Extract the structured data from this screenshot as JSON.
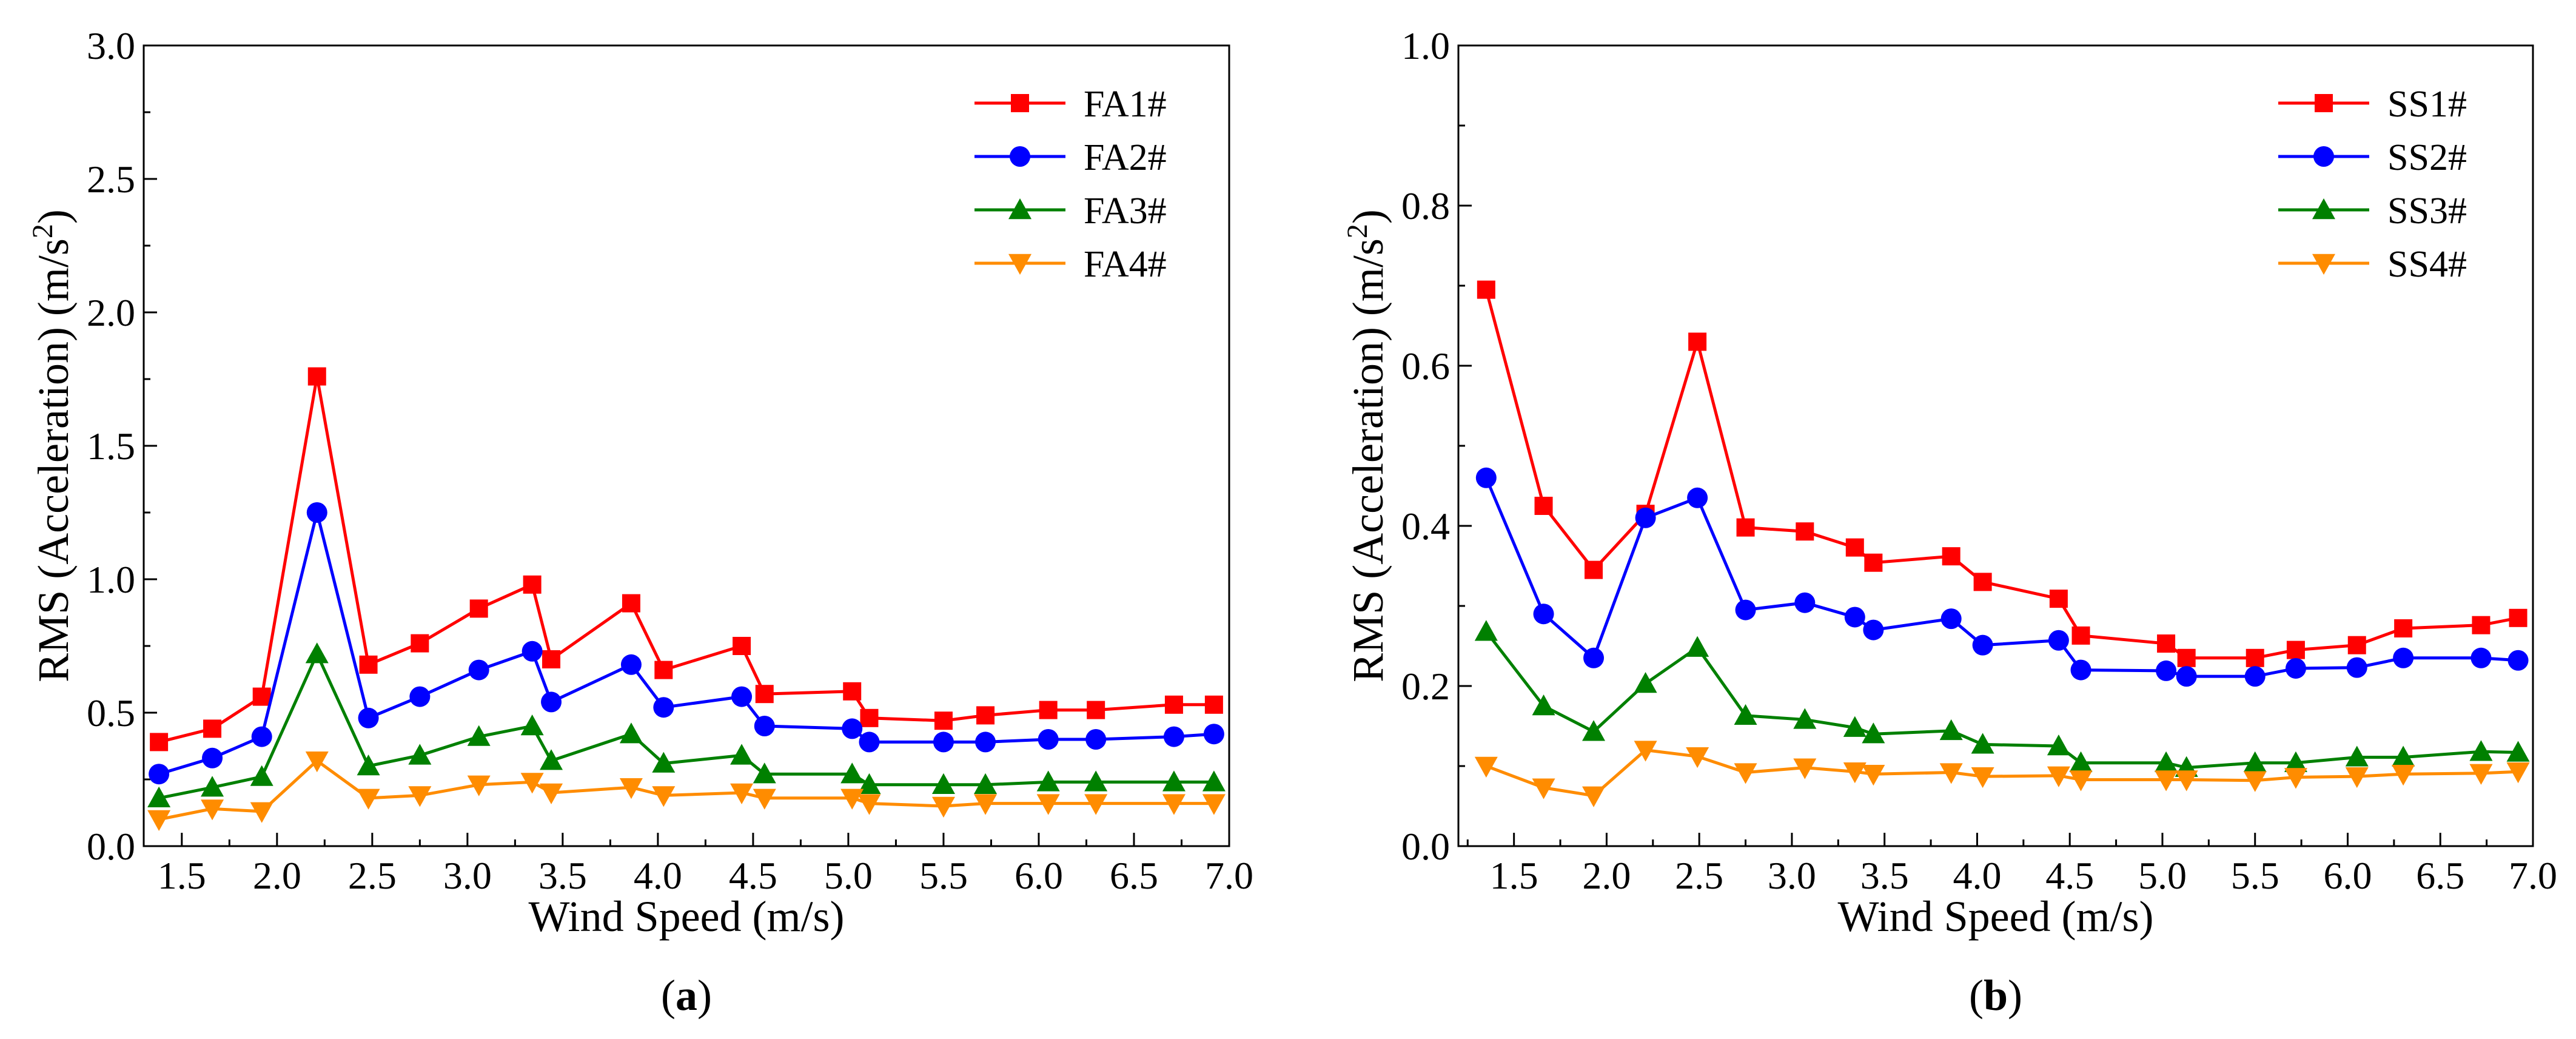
{
  "chart_data": [
    {
      "type": "line",
      "panel_label": "(a)",
      "xlabel": "Wind Speed (m/s)",
      "ylabel": "RMS (Acceleration) (m/s²)",
      "ylabel_main": "RMS (Acceleration) (m/s",
      "ylabel_sup": "2",
      "ylabel_tail": ")",
      "xlim": [
        1.3,
        7.0
      ],
      "ylim": [
        0.0,
        3.0
      ],
      "xticks": [
        "1.5",
        "2.0",
        "2.5",
        "3.0",
        "3.5",
        "4.0",
        "4.5",
        "5.0",
        "5.5",
        "6.0",
        "6.5",
        "7.0"
      ],
      "yticks": [
        "0.0",
        "0.5",
        "1.0",
        "1.5",
        "2.0",
        "2.5",
        "3.0"
      ],
      "legend_position": "top-right",
      "grid": false,
      "x": [
        1.38,
        1.66,
        1.92,
        2.21,
        2.48,
        2.75,
        3.06,
        3.34,
        3.44,
        3.86,
        4.03,
        4.44,
        4.56,
        5.02,
        5.11,
        5.5,
        5.72,
        6.05,
        6.3,
        6.71,
        6.92
      ],
      "series": [
        {
          "name": "FA1#",
          "color": "#ff0000",
          "marker": "square",
          "values": [
            0.39,
            0.44,
            0.56,
            1.76,
            0.68,
            0.76,
            0.89,
            0.98,
            0.7,
            0.91,
            0.66,
            0.75,
            0.57,
            0.58,
            0.48,
            0.47,
            0.49,
            0.51,
            0.51,
            0.53,
            0.53
          ]
        },
        {
          "name": "FA2#",
          "color": "#0000ff",
          "marker": "circle",
          "values": [
            0.27,
            0.33,
            0.41,
            1.25,
            0.48,
            0.56,
            0.66,
            0.73,
            0.54,
            0.68,
            0.52,
            0.56,
            0.45,
            0.44,
            0.39,
            0.39,
            0.39,
            0.4,
            0.4,
            0.41,
            0.42
          ]
        },
        {
          "name": "FA3#",
          "color": "#008000",
          "marker": "triangle-up",
          "values": [
            0.18,
            0.22,
            0.26,
            0.72,
            0.3,
            0.34,
            0.41,
            0.45,
            0.32,
            0.42,
            0.31,
            0.34,
            0.27,
            0.27,
            0.23,
            0.23,
            0.23,
            0.24,
            0.24,
            0.24,
            0.24
          ]
        },
        {
          "name": "FA4#",
          "color": "#ff8c00",
          "marker": "triangle-down",
          "values": [
            0.1,
            0.14,
            0.13,
            0.32,
            0.18,
            0.19,
            0.23,
            0.24,
            0.2,
            0.22,
            0.19,
            0.2,
            0.18,
            0.18,
            0.16,
            0.15,
            0.16,
            0.16,
            0.16,
            0.16,
            0.16
          ]
        }
      ]
    },
    {
      "type": "line",
      "panel_label": "(b)",
      "xlabel": "Wind Speed (m/s)",
      "ylabel": "RMS (Acceleration) (m/s²)",
      "ylabel_main": "RMS (Acceleration) (m/s",
      "ylabel_sup": "2",
      "ylabel_tail": ")",
      "xlim": [
        1.2,
        7.0
      ],
      "ylim": [
        0.0,
        1.0
      ],
      "xticks": [
        "1.5",
        "2.0",
        "2.5",
        "3.0",
        "3.5",
        "4.0",
        "4.5",
        "5.0",
        "5.5",
        "6.0",
        "6.5",
        "7.0"
      ],
      "yticks": [
        "0.0",
        "0.2",
        "0.4",
        "0.6",
        "0.8",
        "1.0"
      ],
      "legend_position": "top-right",
      "grid": false,
      "x": [
        1.35,
        1.66,
        1.93,
        2.21,
        2.49,
        2.75,
        3.07,
        3.34,
        3.44,
        3.86,
        4.03,
        4.44,
        4.56,
        5.02,
        5.13,
        5.5,
        5.72,
        6.05,
        6.3,
        6.72,
        6.92
      ],
      "series": [
        {
          "name": "SS1#",
          "color": "#ff0000",
          "marker": "square",
          "values": [
            0.695,
            0.425,
            0.345,
            0.415,
            0.63,
            0.398,
            0.393,
            0.373,
            0.354,
            0.362,
            0.33,
            0.309,
            0.263,
            0.253,
            0.235,
            0.235,
            0.245,
            0.251,
            0.272,
            0.276,
            0.285
          ]
        },
        {
          "name": "SS2#",
          "color": "#0000ff",
          "marker": "circle",
          "values": [
            0.46,
            0.29,
            0.235,
            0.41,
            0.435,
            0.295,
            0.304,
            0.286,
            0.27,
            0.284,
            0.251,
            0.257,
            0.22,
            0.219,
            0.212,
            0.212,
            0.222,
            0.223,
            0.235,
            0.235,
            0.232
          ]
        },
        {
          "name": "SS3#",
          "color": "#008000",
          "marker": "triangle-up",
          "values": [
            0.268,
            0.175,
            0.143,
            0.203,
            0.248,
            0.163,
            0.158,
            0.148,
            0.14,
            0.144,
            0.127,
            0.125,
            0.104,
            0.104,
            0.098,
            0.104,
            0.104,
            0.111,
            0.111,
            0.118,
            0.117
          ]
        },
        {
          "name": "SS4#",
          "color": "#ff8c00",
          "marker": "triangle-down",
          "values": [
            0.1,
            0.073,
            0.063,
            0.12,
            0.112,
            0.092,
            0.098,
            0.093,
            0.09,
            0.092,
            0.087,
            0.088,
            0.083,
            0.083,
            0.083,
            0.082,
            0.086,
            0.087,
            0.09,
            0.091,
            0.093
          ]
        }
      ]
    }
  ]
}
